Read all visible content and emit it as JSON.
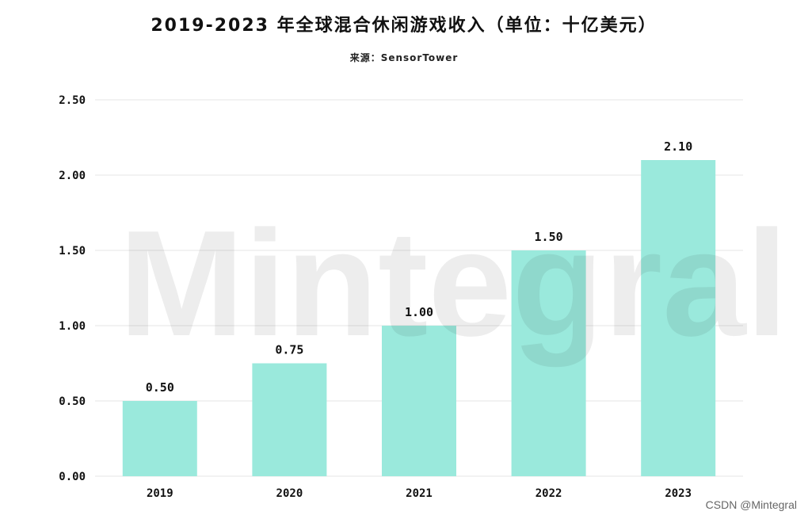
{
  "chart_data": {
    "type": "bar",
    "title": "2019-2023 年全球混合休闲游戏收入（单位：十亿美元）",
    "subtitle": "来源：SensorTower",
    "categories": [
      "2019",
      "2020",
      "2021",
      "2022",
      "2023"
    ],
    "values": [
      0.5,
      0.75,
      1.0,
      1.5,
      2.1
    ],
    "value_labels": [
      "0.50",
      "0.75",
      "1.00",
      "1.50",
      "2.10"
    ],
    "yticks": [
      "0.00",
      "0.50",
      "1.00",
      "1.50",
      "2.00",
      "2.50"
    ],
    "ytick_values": [
      0,
      0.5,
      1.0,
      1.5,
      2.0,
      2.5
    ],
    "ylim": [
      0,
      2.5
    ],
    "xlabel": "",
    "ylabel": "",
    "grid": true,
    "legend": "none",
    "bar_color": "#9ae9dc",
    "grid_color": "#e6e6e6"
  },
  "watermark": "Mintegral",
  "credit": "CSDN @Mintegral"
}
